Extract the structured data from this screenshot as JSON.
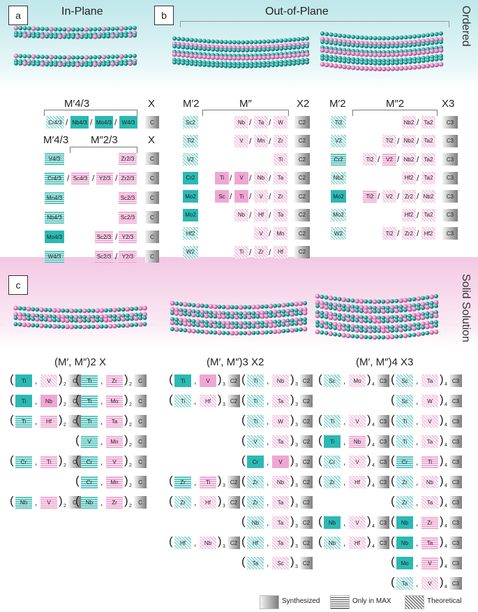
{
  "panels": {
    "a": "a",
    "b": "b",
    "c": "c"
  },
  "headings": {
    "in_plane": "In-Plane",
    "out_of_plane": "Out-of-Plane",
    "ordered": "Ordered",
    "solid_solution": "Solid Solution"
  },
  "ordered_in_plane": {
    "top_headers": {
      "m": "M′4/3",
      "x": "X"
    },
    "top_row": {
      "cells": [
        [
          "Cr4/3",
          "teal-t"
        ],
        [
          "Nb4/3",
          "teal-s"
        ],
        [
          "Mo4/3",
          "teal-s"
        ],
        [
          "W4/3",
          "teal-s"
        ]
      ],
      "x": "C"
    },
    "headers": {
      "m1": "M′4/3",
      "m2": "M″2/3",
      "x": "X"
    },
    "rows": [
      {
        "m1": "V4/3",
        "m1s": "teal-h",
        "mid": [],
        "m2": "Zr2/3",
        "m2s": "pink-h",
        "x": "C"
      },
      {
        "m1": "Cr4/3",
        "m1s": "teal-h",
        "mid": [
          [
            "Sc4/3",
            "pink-h"
          ],
          [
            "Y2/3",
            "pink-h"
          ]
        ],
        "m2": "Zr2/3",
        "m2s": "pink-h",
        "x": "C"
      },
      {
        "m1": "Mn4/3",
        "m1s": "teal-h",
        "mid": [],
        "m2": "Sc2/3",
        "m2s": "pink-h",
        "x": "C"
      },
      {
        "m1": "Nb4/3",
        "m1s": "teal-h",
        "mid": [],
        "m2": "Sc2/3",
        "m2s": "pink-h",
        "x": "C"
      },
      {
        "m1": "Mo4/3",
        "m1s": "teal-s",
        "mid": [
          [
            "Sc2/3",
            "pink-h"
          ]
        ],
        "m2": "Y2/3",
        "m2s": "pink-h",
        "x": "C"
      },
      {
        "m1": "W4/3",
        "m1s": "teal-h",
        "mid": [
          [
            "Sc2/3",
            "pink-h"
          ]
        ],
        "m2": "Y2/3",
        "m2s": "pink-h",
        "x": "C"
      }
    ]
  },
  "ordered_out_plane_2": {
    "headers": {
      "m1": "M′2",
      "m2": "M″",
      "x": "X2"
    },
    "rows": [
      {
        "m1": "Sc2",
        "m1s": "teal-t",
        "m2": [
          [
            "Nb",
            "pink-t"
          ],
          [
            "Ta",
            "pink-t"
          ],
          [
            "W",
            "pink-t"
          ]
        ],
        "x": "C2"
      },
      {
        "m1": "Ti2",
        "m1s": "teal-t",
        "m2": [
          [
            "V",
            "pink-t"
          ],
          [
            "Mn",
            "pink-t"
          ],
          [
            "Zr",
            "pink-t"
          ]
        ],
        "x": "C2"
      },
      {
        "m1": "V2",
        "m1s": "teal-t",
        "m2": [
          [
            "Ti",
            "pink-t"
          ]
        ],
        "x": "C2"
      },
      {
        "m1": "Cr2",
        "m1s": "teal-s",
        "m2": [
          [
            "Ti",
            "pink-s"
          ],
          [
            "V",
            "pink-s"
          ],
          [
            "Nb",
            "pink-t"
          ],
          [
            "Ta",
            "pink-t"
          ]
        ],
        "x": "C2"
      },
      {
        "m1": "Mo2",
        "m1s": "teal-s",
        "m2": [
          [
            "Sc",
            "pink-s"
          ],
          [
            "Ti",
            "pink-s"
          ],
          [
            "V",
            "pink-t"
          ],
          [
            "Zr",
            "pink-t"
          ]
        ],
        "x": "C2"
      },
      {
        "m1": "Mo2",
        "m1s": "teal-s",
        "m2": [
          [
            "Nb",
            "pink-t"
          ],
          [
            "Hf",
            "pink-t"
          ],
          [
            "Ta",
            "pink-t"
          ]
        ],
        "x": "C2"
      },
      {
        "m1": "Hf2",
        "m1s": "teal-t",
        "m2": [
          [
            "V",
            "pink-t"
          ],
          [
            "Mn",
            "pink-t"
          ]
        ],
        "x": "C2"
      },
      {
        "m1": "W2",
        "m1s": "teal-t",
        "m2": [
          [
            "Ti",
            "pink-t"
          ],
          [
            "Zr",
            "pink-t"
          ],
          [
            "Hf",
            "pink-t"
          ]
        ],
        "x": "C2"
      }
    ]
  },
  "ordered_out_plane_3": {
    "headers": {
      "m1": "M′2",
      "m2": "M″2",
      "x": "X3"
    },
    "rows": [
      {
        "m1": "Ti2",
        "m1s": "teal-t",
        "m2": [
          [
            "Nb2",
            "pink-t"
          ],
          [
            "Ta2",
            "pink-t"
          ]
        ],
        "x": "C3"
      },
      {
        "m1": "V2",
        "m1s": "teal-t",
        "m2": [
          [
            "Ti2",
            "pink-t"
          ],
          [
            "Nb2",
            "pink-t"
          ],
          [
            "Ta2",
            "pink-t"
          ]
        ],
        "x": "C3"
      },
      {
        "m1": "Cr2",
        "m1s": "teal-h",
        "m2": [
          [
            "Ti2",
            "pink-t"
          ],
          [
            "V2",
            "pink-h"
          ],
          [
            "Nb2",
            "pink-t"
          ],
          [
            "Ta2",
            "pink-t"
          ]
        ],
        "x": "C3"
      },
      {
        "m1": "Nb2",
        "m1s": "teal-t",
        "m2": [
          [
            "Hf2",
            "pink-t"
          ],
          [
            "Ta2",
            "pink-t"
          ]
        ],
        "x": "C3"
      },
      {
        "m1": "Mo2",
        "m1s": "teal-s",
        "m2": [
          [
            "Ti2",
            "pink-h"
          ],
          [
            "V2",
            "pink-t"
          ],
          [
            "Zr2",
            "pink-t"
          ],
          [
            "Nb2",
            "pink-t"
          ]
        ],
        "x": "C3"
      },
      {
        "m1": "Mo2",
        "m1s": "teal-t",
        "m2": [
          [
            "Hf2",
            "pink-t"
          ],
          [
            "Ta2",
            "pink-t"
          ]
        ],
        "x": "C3"
      },
      {
        "m1": "W2",
        "m1s": "teal-t",
        "m2": [
          [
            "Ti2",
            "pink-t"
          ],
          [
            "Zr2",
            "pink-t"
          ],
          [
            "Hf2",
            "pink-t"
          ]
        ],
        "x": "C3"
      }
    ]
  },
  "solid_solution": {
    "titles": [
      "(M′,  M″)2 X",
      "(M′,  M″)3 X2",
      "(M′,  M″)4 X3"
    ],
    "groups": [
      {
        "sub": "2",
        "x": "C",
        "slots": [
          [
            {
              "a": "Ti",
              "as": "teal-s",
              "b": "V",
              "bs": "pink-t"
            },
            {
              "a": "Ti",
              "as": "teal-h",
              "b": "Zr",
              "bs": "pink-h"
            }
          ],
          [
            {
              "a": "Ti",
              "as": "teal-s",
              "b": "Nb",
              "bs": "pink-s"
            },
            {
              "a": "Ti",
              "as": "teal-h",
              "b": "Mo",
              "bs": "pink-h"
            }
          ],
          [
            {
              "a": "Ti",
              "as": "teal-h",
              "b": "Hf",
              "bs": "pink-h"
            },
            {
              "a": "Ti",
              "as": "teal-h",
              "b": "Ta",
              "bs": "pink-h"
            }
          ],
          [
            null,
            {
              "a": "V",
              "as": "teal-h",
              "b": "Mn",
              "bs": "pink-h"
            }
          ],
          [
            {
              "a": "Cr",
              "as": "teal-h",
              "b": "Ti",
              "bs": "pink-h"
            },
            {
              "a": "Cr",
              "as": "teal-h",
              "b": "V",
              "bs": "pink-h"
            }
          ],
          [
            null,
            {
              "a": "Cr",
              "as": "teal-h",
              "b": "Mn",
              "bs": "pink-h"
            }
          ],
          [
            {
              "a": "Nb",
              "as": "teal-h",
              "b": "V",
              "bs": "pink-h"
            },
            {
              "a": "Nb",
              "as": "teal-h",
              "b": "Zr",
              "bs": "pink-h"
            }
          ]
        ]
      },
      {
        "sub": "3",
        "x": "C2",
        "slots": [
          [
            {
              "a": "Ti",
              "as": "teal-s",
              "b": "V",
              "bs": "pink-s"
            },
            {
              "a": "Ti",
              "as": "teal-t",
              "b": "Nb",
              "bs": "pink-t"
            }
          ],
          [
            {
              "a": "Ti",
              "as": "teal-t",
              "b": "Hf",
              "bs": "pink-t"
            },
            {
              "a": "Ti",
              "as": "teal-t",
              "b": "Ta",
              "bs": "pink-t"
            }
          ],
          [
            null,
            {
              "a": "Ti",
              "as": "teal-t",
              "b": "W",
              "bs": "pink-t"
            }
          ],
          [
            null,
            {
              "a": "V",
              "as": "teal-t",
              "b": "Ta",
              "bs": "pink-t"
            }
          ],
          [
            null,
            {
              "a": "Cr",
              "as": "teal-s",
              "b": "V",
              "bs": "pink-s"
            }
          ],
          [
            {
              "a": "Zr",
              "as": "teal-h",
              "b": "Ti",
              "bs": "pink-h"
            },
            {
              "a": "Zr",
              "as": "teal-t",
              "b": "Nb",
              "bs": "pink-t"
            }
          ],
          [
            {
              "a": "Zr",
              "as": "teal-t",
              "b": "Hf",
              "bs": "pink-t"
            },
            {
              "a": "Zr",
              "as": "teal-t",
              "b": "Ta",
              "bs": "pink-t"
            }
          ],
          [
            null,
            {
              "a": "Nb",
              "as": "teal-t",
              "b": "Ta",
              "bs": "pink-t"
            }
          ],
          [
            {
              "a": "Hf",
              "as": "teal-t",
              "b": "Nb",
              "bs": "pink-t"
            },
            {
              "a": "Hf",
              "as": "teal-t",
              "b": "Ta",
              "bs": "pink-t"
            }
          ],
          [
            null,
            {
              "a": "Ta",
              "as": "teal-t",
              "b": "Sc",
              "bs": "pink-t"
            }
          ]
        ]
      },
      {
        "sub": "4",
        "x": "C3",
        "slots": [
          [
            {
              "a": "Sc",
              "as": "teal-t",
              "b": "Mo",
              "bs": "pink-t"
            },
            {
              "a": "Sc",
              "as": "teal-t",
              "b": "Ta",
              "bs": "pink-t"
            }
          ],
          [
            null,
            {
              "a": "Sc",
              "as": "teal-t",
              "b": "W",
              "bs": "pink-t"
            }
          ],
          [
            {
              "a": "Ti",
              "as": "teal-t",
              "b": "V",
              "bs": "pink-t"
            },
            {
              "a": "Ti",
              "as": "teal-t",
              "b": "V",
              "bs": "pink-t"
            }
          ],
          [
            {
              "a": "Ti",
              "as": "teal-s",
              "b": "Nb",
              "bs": "pink-h"
            },
            {
              "a": "Ti",
              "as": "teal-t",
              "b": "Ta",
              "bs": "pink-t"
            }
          ],
          [
            {
              "a": "Cr",
              "as": "teal-t",
              "b": "V",
              "bs": "pink-t"
            },
            {
              "a": "Cr",
              "as": "teal-h",
              "b": "Ti",
              "bs": "pink-h"
            }
          ],
          [
            {
              "a": "Zr",
              "as": "teal-t",
              "b": "Hf",
              "bs": "pink-t"
            },
            {
              "a": "Zr",
              "as": "teal-t",
              "b": "Nb",
              "bs": "pink-t"
            }
          ],
          [
            null,
            {
              "a": "Zr",
              "as": "teal-t",
              "b": "Ta",
              "bs": "pink-t"
            }
          ],
          [
            {
              "a": "Nb",
              "as": "teal-s",
              "b": "V",
              "bs": "pink-t"
            },
            {
              "a": "Nb",
              "as": "teal-s",
              "b": "Zr",
              "bs": "pink-h"
            }
          ],
          [
            {
              "a": "Nb",
              "as": "teal-t",
              "b": "Hf",
              "bs": "pink-t"
            },
            {
              "a": "Nb",
              "as": "teal-s",
              "b": "Ta",
              "bs": "pink-h"
            }
          ],
          [
            null,
            {
              "a": "Mo",
              "as": "teal-s",
              "b": "V",
              "bs": "pink-h"
            }
          ],
          [
            null,
            {
              "a": "Ta",
              "as": "teal-t",
              "b": "V",
              "bs": "pink-t"
            }
          ]
        ]
      }
    ]
  },
  "legend": {
    "synthesized": "Synthesized",
    "only_in_max": "Only in MAX",
    "theoretical": "Theoretical"
  },
  "colors": {
    "teal": "#2bb9b4",
    "pink": "#f0a6d4",
    "grey": "#7d7d7d"
  }
}
